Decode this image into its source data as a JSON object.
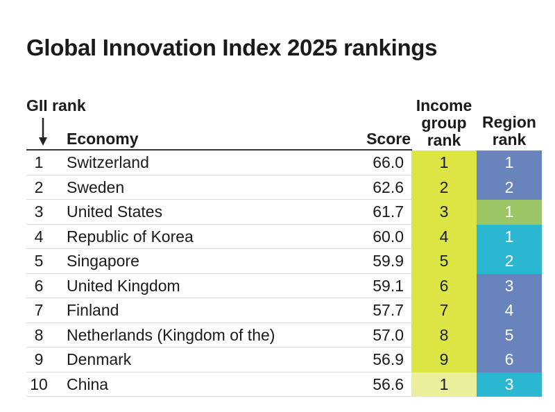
{
  "title": "Global Innovation Index 2025 rankings",
  "headers": {
    "gii_rank": "GII rank",
    "economy": "Economy",
    "score": "Score",
    "income_group_rank": [
      "Income",
      "group",
      "rank"
    ],
    "region_rank": [
      "Region",
      "rank"
    ]
  },
  "colors": {
    "income_high": "#dde544",
    "income_upper_middle": "#ebee9a",
    "region_europe": "#6983bc",
    "region_northern_america": "#9cc565",
    "region_south_east_asia": "#2bb6d2"
  },
  "chart_data": {
    "type": "table",
    "columns": [
      "GII rank",
      "Economy",
      "Score",
      "Income group rank",
      "Region rank"
    ],
    "rows": [
      {
        "rank": "1",
        "economy": "Switzerland",
        "score": "66.0",
        "income_rank": "1",
        "income_group": "high",
        "region_rank": "1",
        "region": "europe"
      },
      {
        "rank": "2",
        "economy": "Sweden",
        "score": "62.6",
        "income_rank": "2",
        "income_group": "high",
        "region_rank": "2",
        "region": "europe"
      },
      {
        "rank": "3",
        "economy": "United States",
        "score": "61.7",
        "income_rank": "3",
        "income_group": "high",
        "region_rank": "1",
        "region": "northern_america"
      },
      {
        "rank": "4",
        "economy": "Republic of Korea",
        "score": "60.0",
        "income_rank": "4",
        "income_group": "high",
        "region_rank": "1",
        "region": "south_east_asia"
      },
      {
        "rank": "5",
        "economy": "Singapore",
        "score": "59.9",
        "income_rank": "5",
        "income_group": "high",
        "region_rank": "2",
        "region": "south_east_asia"
      },
      {
        "rank": "6",
        "economy": "United Kingdom",
        "score": "59.1",
        "income_rank": "6",
        "income_group": "high",
        "region_rank": "3",
        "region": "europe"
      },
      {
        "rank": "7",
        "economy": "Finland",
        "score": "57.7",
        "income_rank": "7",
        "income_group": "high",
        "region_rank": "4",
        "region": "europe"
      },
      {
        "rank": "8",
        "economy": "Netherlands (Kingdom of the)",
        "score": "57.0",
        "income_rank": "8",
        "income_group": "high",
        "region_rank": "5",
        "region": "europe"
      },
      {
        "rank": "9",
        "economy": "Denmark",
        "score": "56.9",
        "income_rank": "9",
        "income_group": "high",
        "region_rank": "6",
        "region": "europe"
      },
      {
        "rank": "10",
        "economy": "China",
        "score": "56.6",
        "income_rank": "1",
        "income_group": "upper_middle",
        "region_rank": "3",
        "region": "south_east_asia"
      }
    ]
  }
}
